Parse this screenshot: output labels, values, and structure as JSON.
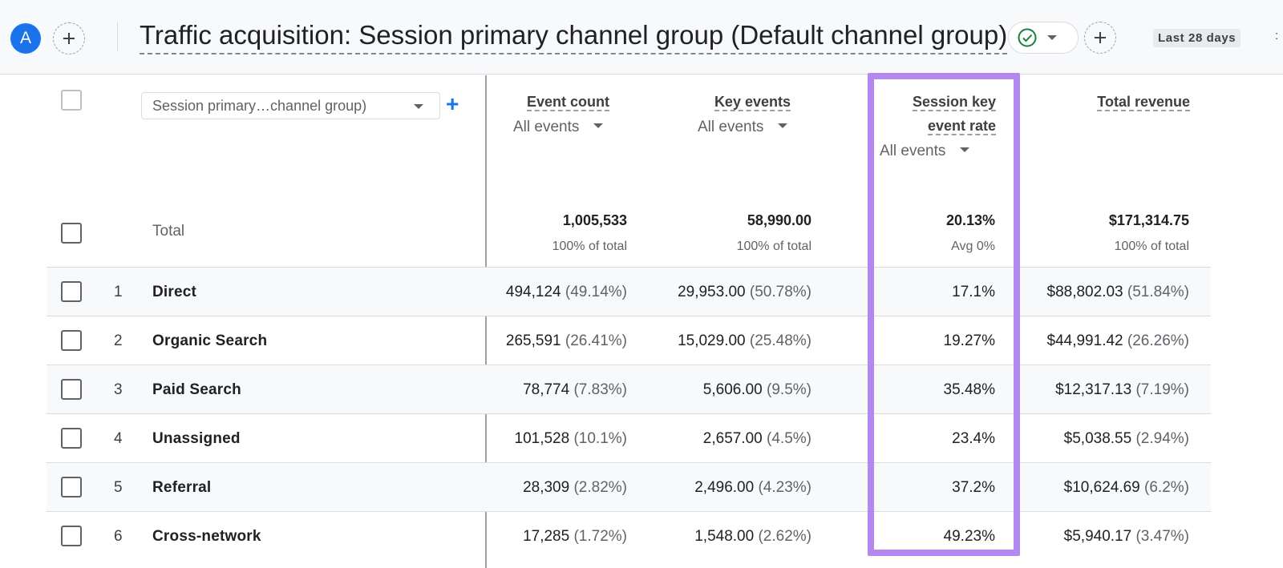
{
  "header": {
    "avatar_letter": "A",
    "title": "Traffic acquisition: Session primary channel group (Default channel group)",
    "date_range": "Last 28 days",
    "date_more": ":"
  },
  "table": {
    "dimension_select": "Session primary…channel group)",
    "add_dimension": "+",
    "columns": [
      {
        "label": "Event count",
        "selector": "All events"
      },
      {
        "label": "Key events",
        "selector": "All events"
      },
      {
        "label_line1": "Session key",
        "label_line2": "event rate",
        "selector": "All events"
      },
      {
        "label": "Total revenue"
      }
    ],
    "total": {
      "label": "Total",
      "event_count": "1,005,533",
      "event_count_sub": "100% of total",
      "key_events": "58,990.00",
      "key_events_sub": "100% of total",
      "rate": "20.13%",
      "rate_sub": "Avg 0%",
      "revenue": "$171,314.75",
      "revenue_sub": "100% of total"
    },
    "rows": [
      {
        "idx": "1",
        "name": "Direct",
        "ec": "494,124",
        "ec_pct": "(49.14%)",
        "ke": "29,953.00",
        "ke_pct": "(50.78%)",
        "rate": "17.1%",
        "rev": "$88,802.03",
        "rev_pct": "(51.84%)"
      },
      {
        "idx": "2",
        "name": "Organic Search",
        "ec": "265,591",
        "ec_pct": "(26.41%)",
        "ke": "15,029.00",
        "ke_pct": "(25.48%)",
        "rate": "19.27%",
        "rev": "$44,991.42",
        "rev_pct": "(26.26%)"
      },
      {
        "idx": "3",
        "name": "Paid Search",
        "ec": "78,774",
        "ec_pct": "(7.83%)",
        "ke": "5,606.00",
        "ke_pct": "(9.5%)",
        "rate": "35.48%",
        "rev": "$12,317.13",
        "rev_pct": "(7.19%)"
      },
      {
        "idx": "4",
        "name": "Unassigned",
        "ec": "101,528",
        "ec_pct": "(10.1%)",
        "ke": "2,657.00",
        "ke_pct": "(4.5%)",
        "rate": "23.4%",
        "rev": "$5,038.55",
        "rev_pct": "(2.94%)"
      },
      {
        "idx": "5",
        "name": "Referral",
        "ec": "28,309",
        "ec_pct": "(2.82%)",
        "ke": "2,496.00",
        "ke_pct": "(4.23%)",
        "rate": "37.2%",
        "rev": "$10,624.69",
        "rev_pct": "(6.2%)"
      },
      {
        "idx": "6",
        "name": "Cross-network",
        "ec": "17,285",
        "ec_pct": "(1.72%)",
        "ke": "1,548.00",
        "ke_pct": "(2.62%)",
        "rate": "49.23%",
        "rev": "$5,940.17",
        "rev_pct": "(3.47%)"
      }
    ]
  },
  "colors": {
    "accent_blue": "#1a73e8",
    "highlight_purple": "#b389f0",
    "check_green": "#188038"
  },
  "icons": {
    "add": "plus-icon",
    "status": "check-circle-icon",
    "dropdown": "chevron-down-icon"
  }
}
